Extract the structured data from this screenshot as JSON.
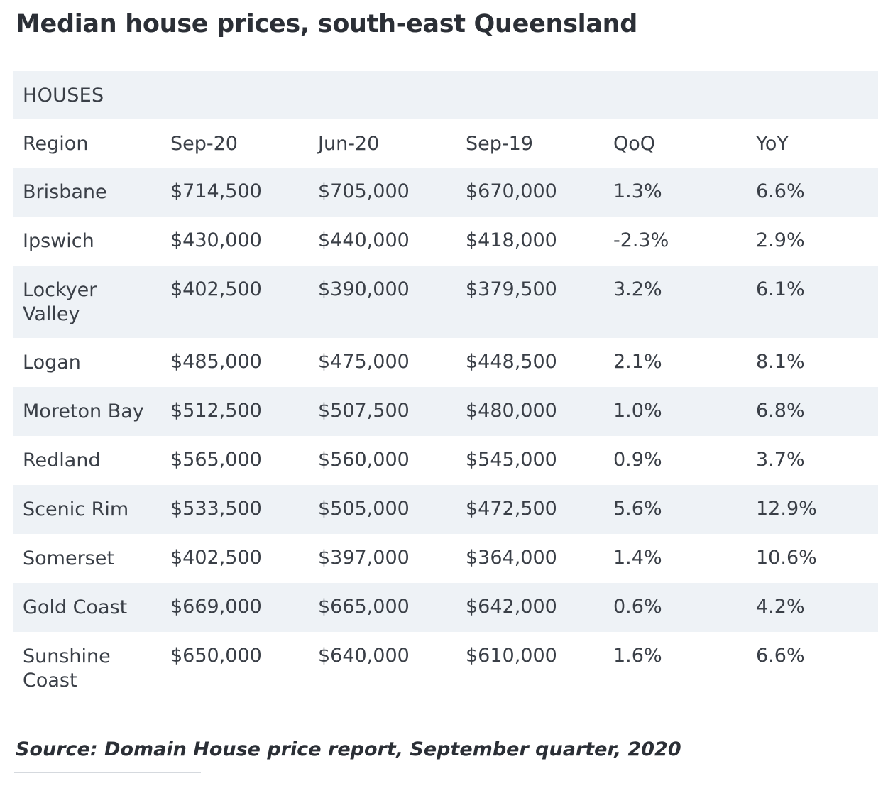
{
  "title": "Median house prices, south-east Queensland",
  "source": "Source: Domain House price report, September quarter, 2020",
  "chart_data": {
    "type": "table",
    "title": "Median house prices, south-east Queensland",
    "section": "HOUSES",
    "columns": [
      "Region",
      "Sep-20",
      "Jun-20",
      "Sep-19",
      "QoQ",
      "YoY"
    ],
    "rows": [
      [
        "Brisbane",
        "$714,500",
        "$705,000",
        "$670,000",
        "1.3%",
        "6.6%"
      ],
      [
        "Ipswich",
        "$430,000",
        "$440,000",
        "$418,000",
        "-2.3%",
        "2.9%"
      ],
      [
        "Lockyer Valley",
        "$402,500",
        "$390,000",
        "$379,500",
        "3.2%",
        "6.1%"
      ],
      [
        "Logan",
        "$485,000",
        "$475,000",
        "$448,500",
        "2.1%",
        "8.1%"
      ],
      [
        "Moreton Bay",
        "$512,500",
        "$507,500",
        "$480,000",
        "1.0%",
        "6.8%"
      ],
      [
        "Redland",
        "$565,000",
        "$560,000",
        "$545,000",
        "0.9%",
        "3.7%"
      ],
      [
        "Scenic Rim",
        "$533,500",
        "$505,000",
        "$472,500",
        "5.6%",
        "12.9%"
      ],
      [
        "Somerset",
        "$402,500",
        "$397,000",
        "$364,000",
        "1.4%",
        "10.6%"
      ],
      [
        "Gold Coast",
        "$669,000",
        "$665,000",
        "$642,000",
        "0.6%",
        "4.2%"
      ],
      [
        "Sunshine Coast",
        "$650,000",
        "$640,000",
        "$610,000",
        "1.6%",
        "6.6%"
      ]
    ],
    "source": "Source: Domain House price report, September quarter, 2020"
  }
}
